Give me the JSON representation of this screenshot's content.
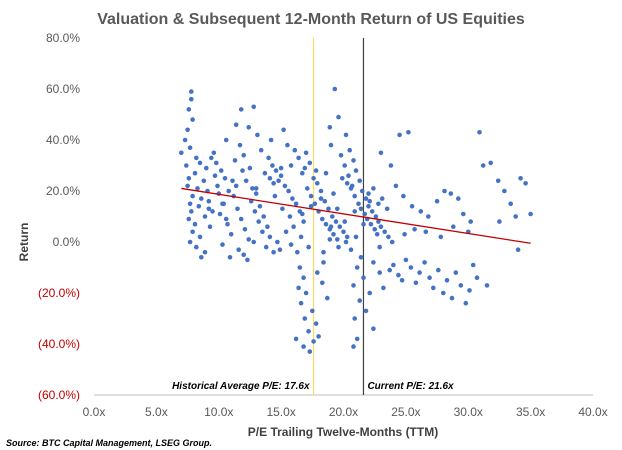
{
  "chart_data": {
    "type": "scatter",
    "title": "Valuation & Subsequent 12-Month Return of US Equities",
    "xlabel": "P/E Trailing Twelve-Months (TTM)",
    "ylabel": "Return",
    "xlim": [
      0,
      40
    ],
    "ylim": [
      -60,
      80
    ],
    "x_ticks": [
      0,
      5,
      10,
      15,
      20,
      25,
      30,
      35,
      40
    ],
    "x_tick_labels": [
      "0.0x",
      "5.0x",
      "10.0x",
      "15.0x",
      "20.0x",
      "25.0x",
      "30.0x",
      "35.0x",
      "40.0x"
    ],
    "y_ticks": [
      80,
      60,
      40,
      20,
      0,
      -20,
      -40,
      -60
    ],
    "y_tick_labels": [
      "80.0%",
      "60.0%",
      "40.0%",
      "20.0%",
      "0.0%",
      "(20.0%)",
      "(40.0%)",
      "(60.0%)"
    ],
    "grid": false,
    "legend": "none",
    "series": [
      {
        "marker_color": "#4472c4",
        "points": [
          [
            7.8,
            59
          ],
          [
            7.8,
            56
          ],
          [
            7.6,
            52
          ],
          [
            7.9,
            48
          ],
          [
            7.5,
            44
          ],
          [
            7.3,
            40
          ],
          [
            7.7,
            37
          ],
          [
            7.0,
            35
          ],
          [
            8.2,
            33
          ],
          [
            8.5,
            31
          ],
          [
            7.4,
            30
          ],
          [
            9.0,
            29
          ],
          [
            8.1,
            27
          ],
          [
            7.6,
            25
          ],
          [
            8.8,
            24
          ],
          [
            7.5,
            22
          ],
          [
            8.3,
            21
          ],
          [
            9.1,
            20
          ],
          [
            7.9,
            18
          ],
          [
            8.6,
            17
          ],
          [
            7.7,
            15
          ],
          [
            8.4,
            14
          ],
          [
            9.2,
            13
          ],
          [
            7.8,
            12
          ],
          [
            8.9,
            10
          ],
          [
            7.6,
            9
          ],
          [
            8.1,
            7
          ],
          [
            9.3,
            6
          ],
          [
            7.9,
            4
          ],
          [
            8.5,
            2
          ],
          [
            7.7,
            0
          ],
          [
            8.2,
            -2
          ],
          [
            8.9,
            -4
          ],
          [
            8.6,
            -6
          ],
          [
            9.6,
            35
          ],
          [
            9.8,
            31
          ],
          [
            10.2,
            28
          ],
          [
            10.5,
            25
          ],
          [
            9.9,
            22
          ],
          [
            10.8,
            20
          ],
          [
            11.2,
            18
          ],
          [
            10.4,
            15
          ],
          [
            11.5,
            13
          ],
          [
            10.1,
            11
          ],
          [
            11.8,
            9
          ],
          [
            10.7,
            7
          ],
          [
            12.1,
            5
          ],
          [
            11.0,
            3
          ],
          [
            12.4,
            1
          ],
          [
            10.3,
            -1
          ],
          [
            11.6,
            -3
          ],
          [
            12.0,
            -5
          ],
          [
            10.9,
            -6
          ],
          [
            12.3,
            -7
          ],
          [
            11.3,
            32
          ],
          [
            11.9,
            28
          ],
          [
            12.2,
            24
          ],
          [
            12.7,
            21
          ],
          [
            13.0,
            19
          ],
          [
            12.6,
            16
          ],
          [
            13.3,
            14
          ],
          [
            12.9,
            12
          ],
          [
            13.6,
            10
          ],
          [
            13.2,
            8
          ],
          [
            13.9,
            6
          ],
          [
            13.5,
            4
          ],
          [
            14.1,
            2
          ],
          [
            12.8,
            0
          ],
          [
            13.8,
            -2
          ],
          [
            14.4,
            -4
          ],
          [
            11.8,
            52
          ],
          [
            12.8,
            53
          ],
          [
            11.4,
            46
          ],
          [
            12.4,
            45
          ],
          [
            13.1,
            42
          ],
          [
            10.6,
            40
          ],
          [
            11.7,
            38
          ],
          [
            13.4,
            36
          ],
          [
            12.0,
            34
          ],
          [
            14.0,
            33
          ],
          [
            14.3,
            30
          ],
          [
            14.6,
            28
          ],
          [
            15.0,
            26
          ],
          [
            14.8,
            24
          ],
          [
            15.3,
            22
          ],
          [
            15.6,
            20
          ],
          [
            14.5,
            18
          ],
          [
            15.9,
            17
          ],
          [
            16.2,
            15
          ],
          [
            15.1,
            13
          ],
          [
            16.5,
            12
          ],
          [
            15.7,
            10
          ],
          [
            16.8,
            8
          ],
          [
            16.0,
            6
          ],
          [
            15.4,
            4
          ],
          [
            16.6,
            2
          ],
          [
            14.7,
            0
          ],
          [
            15.8,
            -1
          ],
          [
            14.9,
            -3
          ],
          [
            16.3,
            -4
          ],
          [
            15.2,
            44
          ],
          [
            14.2,
            40
          ],
          [
            15.5,
            38
          ],
          [
            16.1,
            36
          ],
          [
            17.0,
            35
          ],
          [
            16.4,
            33
          ],
          [
            17.3,
            31
          ],
          [
            15.0,
            29
          ],
          [
            16.7,
            27
          ],
          [
            17.6,
            25
          ],
          [
            17.9,
            23
          ],
          [
            17.1,
            21
          ],
          [
            18.2,
            20
          ],
          [
            17.4,
            18
          ],
          [
            18.5,
            16
          ],
          [
            17.7,
            15
          ],
          [
            18.8,
            13
          ],
          [
            18.0,
            12
          ],
          [
            19.1,
            10
          ],
          [
            18.3,
            9
          ],
          [
            19.4,
            8
          ],
          [
            18.6,
            7
          ],
          [
            19.7,
            6
          ],
          [
            18.9,
            5
          ],
          [
            20.0,
            4
          ],
          [
            19.2,
            3
          ],
          [
            20.3,
            2
          ],
          [
            19.5,
            1
          ],
          [
            17.2,
            -2
          ],
          [
            18.4,
            -4
          ],
          [
            16.5,
            -10
          ],
          [
            16.8,
            -14
          ],
          [
            16.4,
            -18
          ],
          [
            17.0,
            -20
          ],
          [
            16.6,
            -24
          ],
          [
            17.5,
            -27
          ],
          [
            16.9,
            -30
          ],
          [
            17.8,
            -32
          ],
          [
            17.2,
            -35
          ],
          [
            18.0,
            -37
          ],
          [
            17.6,
            -39
          ],
          [
            16.8,
            -41
          ],
          [
            17.3,
            -43
          ],
          [
            16.2,
            -38
          ],
          [
            18.3,
            -16
          ],
          [
            18.7,
            -22
          ],
          [
            17.9,
            -12
          ],
          [
            18.4,
            -8
          ],
          [
            19.3,
            60
          ],
          [
            19.6,
            49
          ],
          [
            18.9,
            45
          ],
          [
            20.2,
            42
          ],
          [
            19.0,
            38
          ],
          [
            20.5,
            36
          ],
          [
            19.8,
            34
          ],
          [
            20.8,
            32
          ],
          [
            20.1,
            30
          ],
          [
            21.0,
            28
          ],
          [
            20.4,
            26
          ],
          [
            21.3,
            24
          ],
          [
            20.7,
            22
          ],
          [
            21.5,
            20
          ],
          [
            20.9,
            18
          ],
          [
            21.8,
            17
          ],
          [
            21.2,
            15
          ],
          [
            22.0,
            14
          ],
          [
            21.4,
            13
          ],
          [
            22.3,
            12
          ],
          [
            21.7,
            11
          ],
          [
            22.6,
            10
          ],
          [
            21.9,
            9
          ],
          [
            22.8,
            8
          ],
          [
            22.2,
            7
          ],
          [
            23.0,
            6
          ],
          [
            22.5,
            5
          ],
          [
            23.3,
            4
          ],
          [
            22.7,
            3
          ],
          [
            23.6,
            2
          ],
          [
            20.6,
            -3
          ],
          [
            21.4,
            -6
          ],
          [
            22.4,
            -8
          ],
          [
            21.1,
            -10
          ],
          [
            22.9,
            -12
          ],
          [
            21.6,
            -14
          ],
          [
            20.8,
            -17
          ],
          [
            22.1,
            -20
          ],
          [
            21.3,
            -23
          ],
          [
            21.8,
            -27
          ],
          [
            20.9,
            -30
          ],
          [
            21.1,
            -38
          ],
          [
            20.8,
            -41
          ],
          [
            22.4,
            -34
          ],
          [
            23.2,
            -18
          ],
          [
            23.7,
            -11
          ],
          [
            24.0,
            -9
          ],
          [
            24.4,
            -13
          ],
          [
            24.7,
            -15
          ],
          [
            25.0,
            -7
          ],
          [
            25.4,
            -10
          ],
          [
            25.8,
            -16
          ],
          [
            26.1,
            -12
          ],
          [
            26.5,
            -8
          ],
          [
            26.9,
            -14
          ],
          [
            27.2,
            -18
          ],
          [
            27.6,
            -11
          ],
          [
            28.0,
            -20
          ],
          [
            28.3,
            -15
          ],
          [
            28.7,
            -22
          ],
          [
            29.0,
            -12
          ],
          [
            29.4,
            -17
          ],
          [
            29.8,
            -24
          ],
          [
            30.1,
            -19
          ],
          [
            30.4,
            -9
          ],
          [
            30.7,
            -14
          ],
          [
            24.5,
            42
          ],
          [
            25.2,
            43
          ],
          [
            23.0,
            35
          ],
          [
            23.8,
            30
          ],
          [
            24.2,
            22
          ],
          [
            24.8,
            18
          ],
          [
            25.5,
            14
          ],
          [
            26.2,
            12
          ],
          [
            26.8,
            10
          ],
          [
            27.5,
            16
          ],
          [
            28.1,
            20
          ],
          [
            28.6,
            19
          ],
          [
            29.2,
            17
          ],
          [
            29.6,
            11
          ],
          [
            30.2,
            8
          ],
          [
            30.9,
            43
          ],
          [
            31.2,
            30
          ],
          [
            31.8,
            31
          ],
          [
            32.4,
            24
          ],
          [
            32.9,
            20
          ],
          [
            33.4,
            15
          ],
          [
            33.8,
            10
          ],
          [
            34.2,
            25
          ],
          [
            34.6,
            23
          ],
          [
            35.0,
            11
          ],
          [
            34.0,
            -3
          ],
          [
            32.5,
            8
          ],
          [
            31.5,
            -17
          ],
          [
            30.0,
            4
          ],
          [
            28.8,
            6
          ],
          [
            27.8,
            2
          ],
          [
            26.6,
            4
          ],
          [
            25.7,
            5
          ],
          [
            24.9,
            3
          ],
          [
            23.9,
            0
          ],
          [
            22.9,
            -2
          ],
          [
            9.4,
            33
          ],
          [
            9.7,
            26
          ],
          [
            10.0,
            19
          ],
          [
            10.3,
            15
          ],
          [
            9.5,
            12
          ],
          [
            10.6,
            9
          ],
          [
            9.2,
            16
          ],
          [
            11.1,
            24
          ],
          [
            11.4,
            22
          ],
          [
            12.5,
            29
          ],
          [
            13.7,
            27
          ],
          [
            14.1,
            25
          ],
          [
            14.4,
            23
          ],
          [
            13.0,
            21
          ],
          [
            15.8,
            30
          ],
          [
            16.9,
            29
          ],
          [
            17.8,
            28
          ],
          [
            18.6,
            27
          ],
          [
            19.9,
            25
          ],
          [
            20.3,
            23
          ],
          [
            20.6,
            21
          ],
          [
            19.2,
            19
          ],
          [
            18.2,
            17
          ],
          [
            17.4,
            14
          ],
          [
            16.7,
            11
          ],
          [
            19.5,
            13
          ],
          [
            20.9,
            12
          ],
          [
            21.6,
            7
          ],
          [
            20.1,
            8
          ],
          [
            19.0,
            6
          ],
          [
            22.0,
            19
          ],
          [
            22.4,
            21
          ],
          [
            23.1,
            17
          ],
          [
            22.8,
            15
          ],
          [
            23.5,
            13
          ],
          [
            22.1,
            16
          ],
          [
            21.0,
            2
          ],
          [
            20.2,
            0
          ],
          [
            19.6,
            -2
          ],
          [
            18.9,
            1
          ]
        ]
      }
    ],
    "trendline": {
      "from": [
        7.0,
        21
      ],
      "to": [
        35.0,
        -0.5
      ],
      "color": "#c00000"
    },
    "reference_lines": [
      {
        "x": 17.6,
        "color": "#ffd966",
        "label": "Historical Average P/E: 17.6x"
      },
      {
        "x": 21.6,
        "color": "#404040",
        "label": "Current P/E: 21.6x"
      }
    ],
    "source": "Source: BTC Capital Management, LSEG Group."
  }
}
